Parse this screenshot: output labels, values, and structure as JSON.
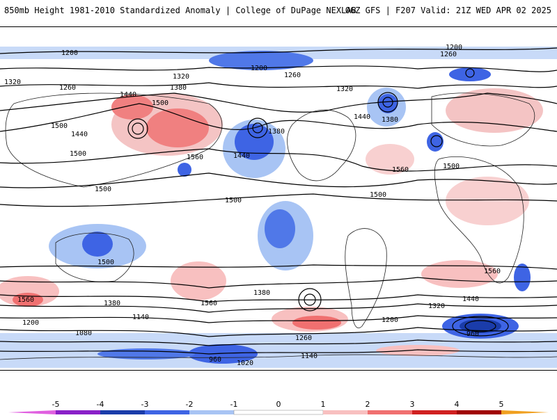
{
  "header": {
    "title": "850mb Height 1981-2010 Standardized Anomaly | College of DuPage NEXLAB",
    "run_info": "06Z GFS | F207 Valid: 21Z WED APR 02 2025"
  },
  "map": {
    "contour_labels": [
      "1200",
      "1260",
      "1320",
      "1380",
      "1440",
      "1500",
      "1560",
      "1080",
      "1140",
      "1020",
      "960"
    ],
    "labels": {
      "l1200a": "1200",
      "l1200b": "1200",
      "l1200c": "1200",
      "l1260a": "1260",
      "l1260b": "1260",
      "l1260c": "1260",
      "l1320a": "1320",
      "l1320b": "1320",
      "l1320c": "1320",
      "l1380a": "1380",
      "l1380b": "1380",
      "l1380c": "1380",
      "l1440a": "1440",
      "l1440b": "1440",
      "l1440c": "1440",
      "l1440d": "1440",
      "l1500a": "1500",
      "l1500b": "1500",
      "l1500c": "1500",
      "l1500d": "1500",
      "l1500e": "1500",
      "l1500f": "1500",
      "l1500g": "1500",
      "l1560a": "1560",
      "l1560b": "1560",
      "l1560c": "1560",
      "l1560d": "1560",
      "l1080a": "1080",
      "l1140a": "1140",
      "l1140b": "1140",
      "l1020a": "1020",
      "l960a": "960",
      "l960b": "960",
      "l1200d": "1200",
      "l1200e": "1200",
      "l1380d": "1380",
      "l1380e": "1380",
      "l1320d": "1320",
      "l1260d": "1260",
      "l1440e": "1440",
      "l1500h": "1500",
      "l1560e": "1560"
    }
  },
  "colorbar": {
    "ticks": [
      "-5",
      "-4",
      "-3",
      "-2",
      "-1",
      "0",
      "1",
      "2",
      "3",
      "4",
      "5"
    ],
    "colors": [
      "#e060e0",
      "#8a20c8",
      "#1a3caa",
      "#3e64e4",
      "#a8c4f4",
      "#ffffff",
      "#f8c0c0",
      "#f07070",
      "#d02020",
      "#a00000",
      "#f0a020"
    ]
  }
}
